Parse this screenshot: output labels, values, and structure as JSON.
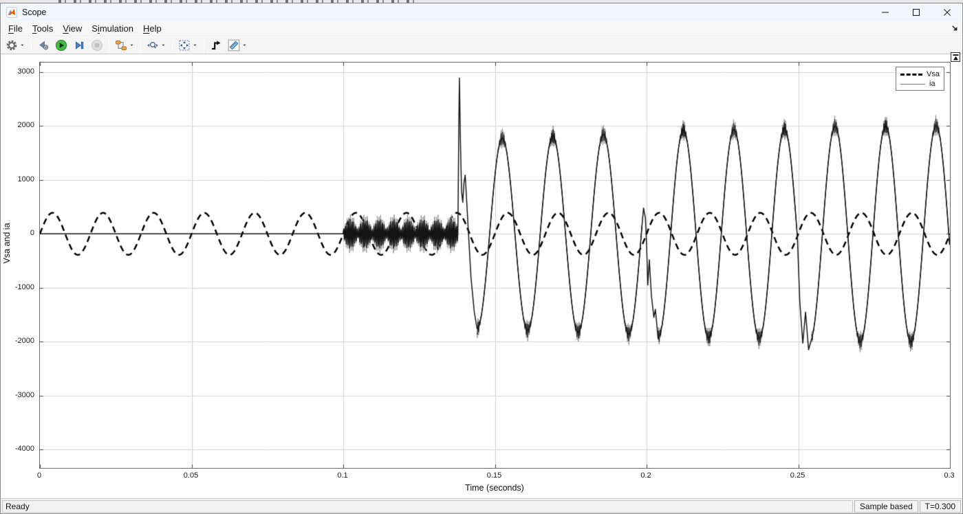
{
  "window": {
    "title": "Scope"
  },
  "menu_bar": {
    "items": [
      {
        "label": "File",
        "underline_index": 0
      },
      {
        "label": "Tools",
        "underline_index": 0
      },
      {
        "label": "View",
        "underline_index": 0
      },
      {
        "label": "Simulation",
        "underline_index": 1
      },
      {
        "label": "Help",
        "underline_index": 0
      }
    ],
    "overflow_icon": "menu-overflow-arrow-icon"
  },
  "title_bar": {
    "app_icon": "matlab-icon",
    "controls": [
      {
        "name": "minimize-button",
        "icon": "minimize-icon"
      },
      {
        "name": "maximize-button",
        "icon": "maximize-icon"
      },
      {
        "name": "close-button",
        "icon": "close-icon"
      }
    ]
  },
  "toolbar": {
    "items": [
      {
        "name": "configuration-properties-button",
        "icon": "gear-icon",
        "dropdown": true,
        "sep_after": true
      },
      {
        "name": "step-back-button",
        "icon": "step-back-icon"
      },
      {
        "name": "run-button",
        "icon": "run-icon"
      },
      {
        "name": "step-forward-button",
        "icon": "step-forward-icon"
      },
      {
        "name": "stop-button",
        "icon": "stop-icon",
        "disabled": true,
        "sep_after": true
      },
      {
        "name": "simulink-snapshot-button",
        "icon": "signal-blocks-icon",
        "dropdown": true,
        "sep_after": true
      },
      {
        "name": "zoom-button",
        "icon": "zoom-icon",
        "dropdown": true,
        "sep_after": true
      },
      {
        "name": "span-button",
        "icon": "fit-to-view-icon",
        "dropdown": true,
        "sep_after": true
      },
      {
        "name": "trigger-button",
        "icon": "trigger-icon"
      },
      {
        "name": "measurements-button",
        "icon": "measurements-icon",
        "dropdown": true
      }
    ]
  },
  "figure": {
    "dock_button_icon": "dock-arrow-icon"
  },
  "legend": {
    "entries": [
      {
        "label": "Vsa",
        "style": "dashed"
      },
      {
        "label": "ia",
        "style": "solid"
      }
    ]
  },
  "status_bar": {
    "left": "Ready",
    "cells": [
      "Sample based",
      "T=0.300"
    ]
  },
  "chart_data": {
    "type": "line",
    "title": "",
    "xlabel": "Time (seconds)",
    "ylabel": "Vsa and ia",
    "xlim": [
      0,
      0.3
    ],
    "ylim": [
      -4343,
      3178
    ],
    "grid": true,
    "legend_position": "northeast",
    "xticks": [
      {
        "v": 0,
        "label": "0"
      },
      {
        "v": 0.05,
        "label": "0.05"
      },
      {
        "v": 0.1,
        "label": "0.1"
      },
      {
        "v": 0.15,
        "label": "0.15"
      },
      {
        "v": 0.2,
        "label": "0.2"
      },
      {
        "v": 0.25,
        "label": "0.25"
      },
      {
        "v": 0.3,
        "label": "0.3"
      }
    ],
    "yticks": [
      {
        "v": 3000,
        "label": "3000"
      },
      {
        "v": 2000,
        "label": "2000"
      },
      {
        "v": 1000,
        "label": "1000"
      },
      {
        "v": 0,
        "label": "0"
      },
      {
        "v": -1000,
        "label": "-1000"
      },
      {
        "v": -2000,
        "label": "-2000"
      },
      {
        "v": -3000,
        "label": "-3000"
      },
      {
        "v": -4000,
        "label": "-4000"
      }
    ],
    "grid_color": "#d2d2d2",
    "tick_color": "#3c3c3c",
    "series": [
      {
        "name": "Vsa",
        "line": "dashed",
        "color": "#000000",
        "width": 2.5,
        "dash": [
          9,
          6
        ],
        "segments": [
          {
            "kind": "sine",
            "t": [
              0,
              0.3
            ],
            "f": 60,
            "amp_from": 390,
            "amp_to": 390,
            "zero_up_at": 0
          }
        ]
      },
      {
        "name": "ia",
        "line": "solid",
        "color": "#141414",
        "width": 1.5,
        "halo_color": "#909090",
        "segments": [
          {
            "kind": "flat",
            "t": [
              0,
              0.1
            ],
            "v": 0
          },
          {
            "kind": "am",
            "t": [
              0.1,
              0.1378
            ],
            "env_base": 70,
            "env_amp": 200,
            "env_hz": 105,
            "carrier_hz": 1800,
            "halo": 1.35
          },
          {
            "kind": "points",
            "pts": [
              [
                0.1378,
                50
              ],
              [
                0.1381,
                2000
              ],
              [
                0.1383,
                2890
              ],
              [
                0.1386,
                1800
              ],
              [
                0.139,
                800
              ],
              [
                0.1394,
                585
              ],
              [
                0.1398,
                950
              ],
              [
                0.1402,
                1090
              ],
              [
                0.1407,
                600
              ],
              [
                0.1413,
                0
              ],
              [
                0.1421,
                -800
              ],
              [
                0.1432,
                -1450
              ],
              [
                0.1441,
                -1750
              ]
            ]
          },
          {
            "kind": "sine",
            "t": [
              0.1441,
              0.1985
            ],
            "f": 60,
            "min_at": 0.1441,
            "amp_from": 1760,
            "amp_to": 1870,
            "fuzz": {
              "amp": 130,
              "halo_amp": 200,
              "power": 14,
              "carrier_hz": 2100
            }
          },
          {
            "kind": "points",
            "pts": [
              [
                0.1985,
                165
              ],
              [
                0.199,
                480
              ],
              [
                0.1996,
                300
              ],
              [
                0.2,
                -200
              ],
              [
                0.2004,
                -950
              ],
              [
                0.2009,
                -480
              ],
              [
                0.2016,
                -1150
              ],
              [
                0.2024,
                -1550
              ],
              [
                0.2029,
                -1400
              ],
              [
                0.2038,
                -1950
              ]
            ]
          },
          {
            "kind": "sine",
            "t": [
              0.2038,
              0.2497
            ],
            "f": 60,
            "min_at": 0.2038,
            "amp_from": 1920,
            "amp_to": 1950,
            "fuzz": {
              "amp": 130,
              "halo_amp": 200,
              "power": 14,
              "carrier_hz": 2100
            }
          },
          {
            "kind": "points",
            "pts": [
              [
                0.2497,
                -50
              ],
              [
                0.2505,
                -1250
              ],
              [
                0.2515,
                -2030
              ],
              [
                0.2524,
                -1450
              ],
              [
                0.2534,
                -2150
              ],
              [
                0.2544,
                -1950
              ]
            ]
          },
          {
            "kind": "sine",
            "t": [
              0.2544,
              0.3
            ],
            "f": 60,
            "min_at": 0.2538,
            "amp_from": 2000,
            "amp_to": 2010,
            "fuzz": {
              "amp": 130,
              "halo_amp": 200,
              "power": 14,
              "carrier_hz": 2100
            }
          }
        ]
      }
    ]
  }
}
